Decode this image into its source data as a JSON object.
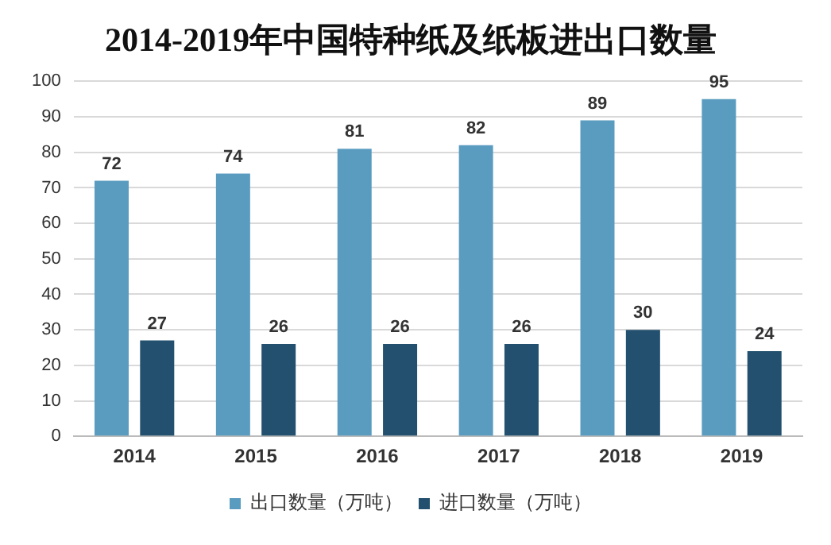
{
  "chart_data": {
    "type": "bar",
    "title": "2014-2019年中国特种纸及纸板进出口数量",
    "categories": [
      "2014",
      "2015",
      "2016",
      "2017",
      "2018",
      "2019"
    ],
    "series": [
      {
        "name": "出口数量（万吨）",
        "color": "#5a9cc0",
        "values": [
          72,
          74,
          81,
          82,
          89,
          95
        ]
      },
      {
        "name": "进口数量（万吨）",
        "color": "#22506e",
        "values": [
          27,
          26,
          26,
          26,
          30,
          24
        ]
      }
    ],
    "ylim": [
      0,
      100
    ],
    "yticks": [
      0,
      10,
      20,
      30,
      40,
      50,
      60,
      70,
      80,
      90,
      100
    ],
    "grid": "y",
    "legend": "bottom",
    "data_labels": true
  }
}
